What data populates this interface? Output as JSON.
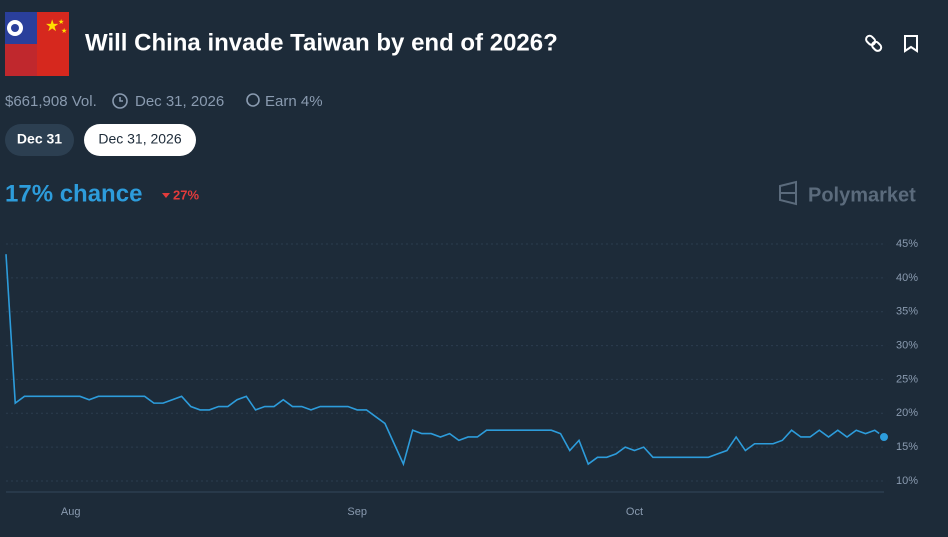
{
  "header": {
    "title": "Will China invade Taiwan by end of 2026?",
    "volume": "$661,908 Vol.",
    "end_date": "Dec 31, 2026",
    "earn": "Earn 4%"
  },
  "tabs": [
    "Dec 31",
    "Dec 31, 2026"
  ],
  "summary": {
    "chance": "17% chance",
    "change": "27%",
    "brand": "Polymarket"
  },
  "chart_data": {
    "type": "line",
    "color": "#2d9cdb",
    "grid": true,
    "categories": [
      null,
      null,
      null,
      null,
      null,
      null,
      null,
      "Aug",
      null,
      null,
      null,
      null,
      null,
      null,
      null,
      null,
      null,
      null,
      null,
      null,
      null,
      null,
      null,
      null,
      null,
      null,
      null,
      null,
      null,
      null,
      null,
      null,
      null,
      null,
      null,
      null,
      null,
      null,
      "Sep",
      null,
      null,
      null,
      null,
      null,
      null,
      null,
      null,
      null,
      null,
      null,
      null,
      null,
      null,
      null,
      null,
      null,
      null,
      null,
      null,
      null,
      null,
      null,
      null,
      null,
      null,
      null,
      null,
      null,
      "Oct",
      null,
      null,
      null,
      null,
      null,
      null,
      null,
      null,
      null,
      null,
      null,
      null,
      null,
      null,
      null,
      null,
      null,
      null,
      null,
      null,
      null,
      null,
      null,
      null,
      null,
      null,
      null
    ],
    "values": [
      43.5,
      21.5,
      22.5,
      22.5,
      22.5,
      22.5,
      22.5,
      22.5,
      22.5,
      22,
      22.5,
      22.5,
      22.5,
      22.5,
      22.5,
      22.5,
      21.5,
      21.5,
      22,
      22.5,
      21,
      20.5,
      20.5,
      21,
      21,
      22,
      22.5,
      20.5,
      21,
      21,
      22,
      21,
      21,
      20.5,
      21,
      21,
      21,
      21,
      20.5,
      20.5,
      19.5,
      18.5,
      15.5,
      12.5,
      17.5,
      17,
      17,
      16.5,
      17,
      16,
      16.5,
      16.5,
      17.5,
      17.5,
      17.5,
      17.5,
      17.5,
      17.5,
      17.5,
      17.5,
      17,
      14.5,
      16,
      12.5,
      13.5,
      13.5,
      14,
      15,
      14.5,
      15,
      13.5,
      13.5,
      13.5,
      13.5,
      13.5,
      13.5,
      13.5,
      14,
      14.5,
      16.5,
      14.5,
      15.5,
      15.5,
      15.5,
      16,
      17.5,
      16.5,
      16.5,
      17.5,
      16.5,
      17.5,
      16.5,
      17.5,
      17,
      17.5,
      16.5
    ],
    "ylim": [
      10,
      45
    ],
    "yticks": [
      {
        "value": 10,
        "label": "10%"
      },
      {
        "value": 15,
        "label": "15%"
      },
      {
        "value": 20,
        "label": "20%"
      },
      {
        "value": 25,
        "label": "25%"
      },
      {
        "value": 30,
        "label": "30%"
      },
      {
        "value": 35,
        "label": "35%"
      },
      {
        "value": 40,
        "label": "40%"
      },
      {
        "value": 45,
        "label": "45%"
      }
    ]
  }
}
